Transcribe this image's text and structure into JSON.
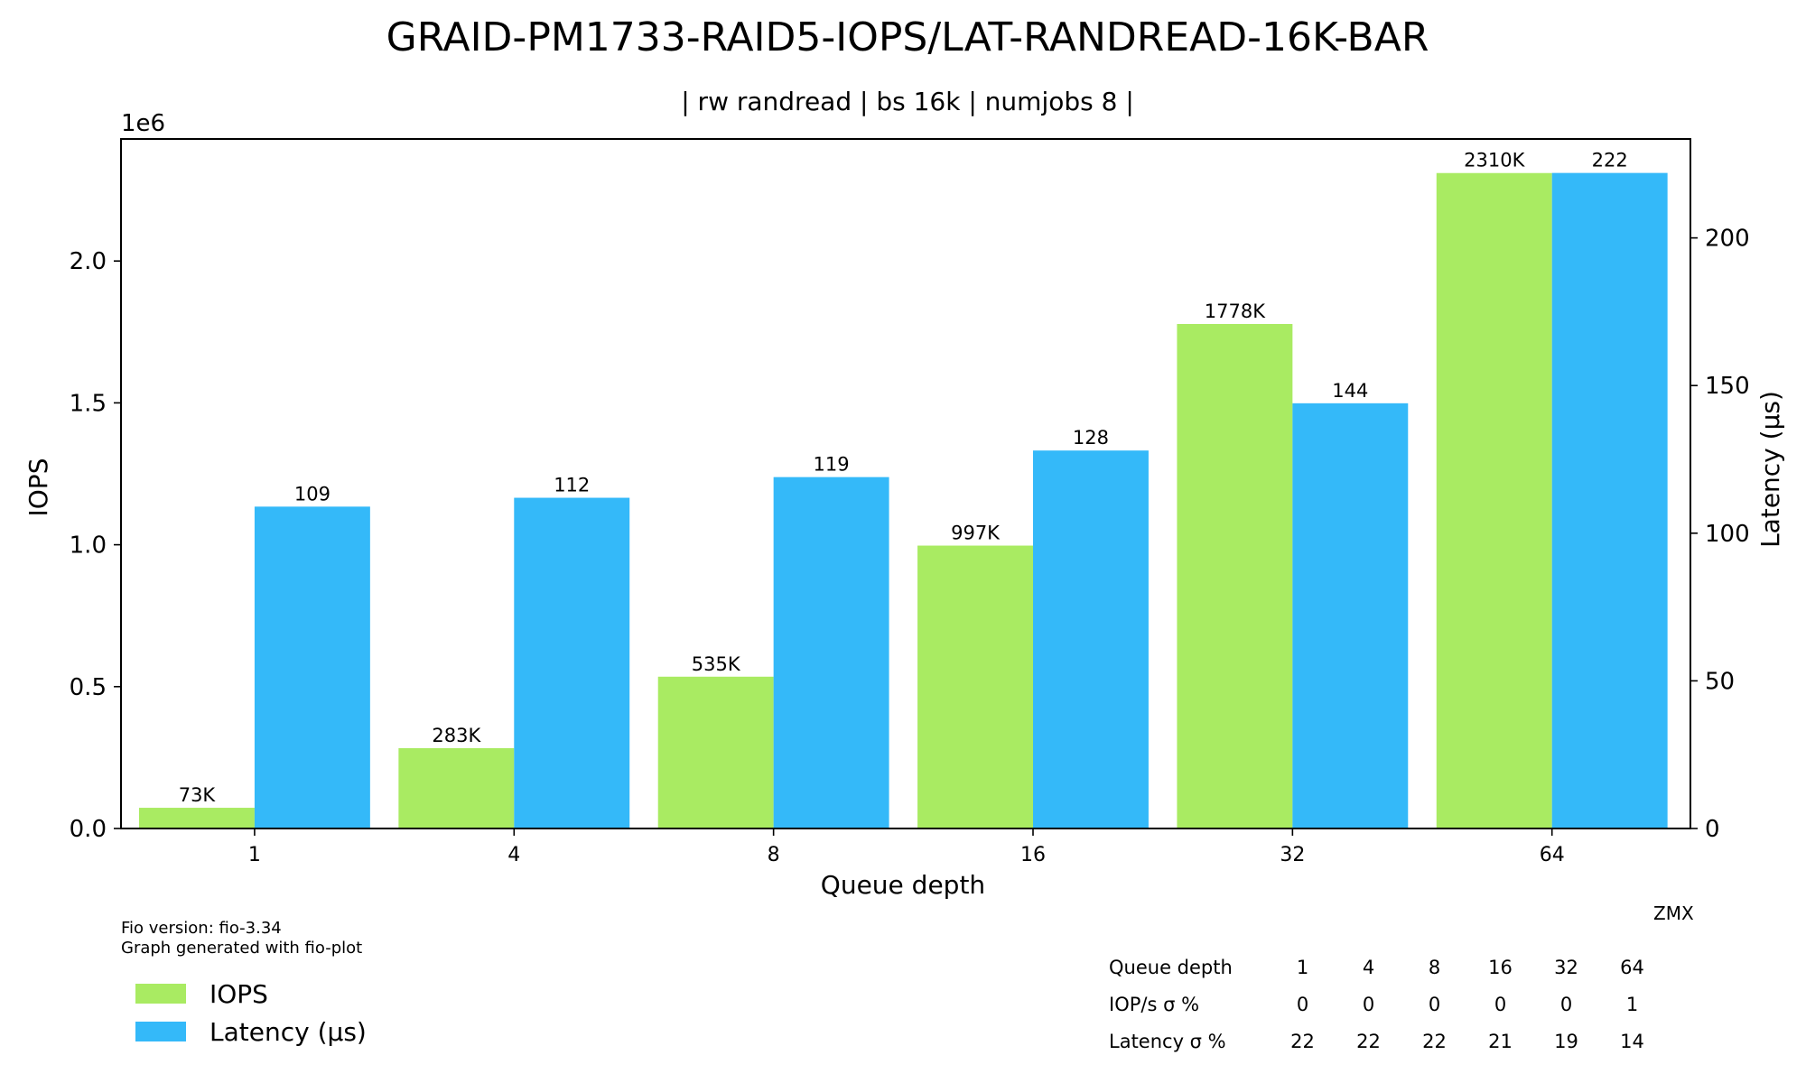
{
  "chart_data": {
    "type": "bar",
    "title": "GRAID-PM1733-RAID5-IOPS/LAT-RANDREAD-16K-BAR",
    "subtitle": "| rw randread | bs 16k | numjobs 8 |",
    "xlabel": "Queue depth",
    "ylabel": "IOPS",
    "y2label": "Latency (µs)",
    "y_offset_text": "1e6",
    "categories": [
      "1",
      "4",
      "8",
      "16",
      "32",
      "64"
    ],
    "ylim": [
      0,
      2430000
    ],
    "y2lim": [
      0,
      233.5
    ],
    "yticks": [
      0,
      500000,
      1000000,
      1500000,
      2000000
    ],
    "ytick_labels": [
      "0.0",
      "0.5",
      "1.0",
      "1.5",
      "2.0"
    ],
    "y2ticks": [
      0,
      50,
      100,
      150,
      200
    ],
    "y2tick_labels": [
      "0",
      "50",
      "100",
      "150",
      "200"
    ],
    "grid": false,
    "series": [
      {
        "name": "IOPS",
        "axis": "left",
        "color": "#a9eb62",
        "values": [
          73000,
          283000,
          535000,
          997000,
          1778000,
          2310000
        ],
        "labels": [
          "73K",
          "283K",
          "535K",
          "997K",
          "1778K",
          "2310K"
        ]
      },
      {
        "name": "Latency (µs)",
        "axis": "right",
        "color": "#34b9f9",
        "values": [
          109,
          112,
          119,
          128,
          144,
          222
        ],
        "labels": [
          "109",
          "112",
          "119",
          "128",
          "144",
          "222"
        ]
      }
    ],
    "legend_placement": "bottom-left"
  },
  "footer": {
    "fio_version": "Fio version: fio-3.34",
    "generated_with": "Graph generated with fio-plot",
    "author": "ZMX"
  },
  "stats_table": {
    "rows": [
      {
        "label": "Queue depth",
        "values": [
          "1",
          "4",
          "8",
          "16",
          "32",
          "64"
        ]
      },
      {
        "label": "IOP/s σ %",
        "values": [
          "0",
          "0",
          "0",
          "0",
          "0",
          "1"
        ]
      },
      {
        "label": "Latency σ %",
        "values": [
          "22",
          "22",
          "22",
          "21",
          "19",
          "14"
        ]
      }
    ]
  }
}
